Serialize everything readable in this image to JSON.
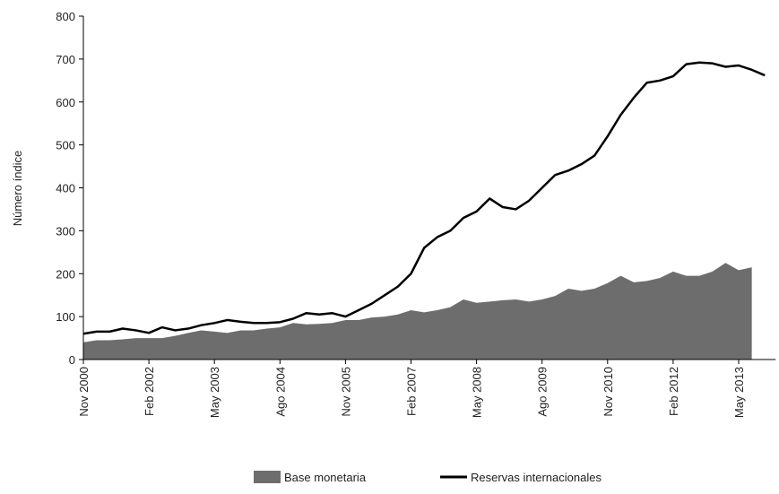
{
  "chart_data": {
    "type": "line-area",
    "y_label": "Número índice",
    "categories": [
      "Nov 2000",
      null,
      null,
      null,
      null,
      "Feb 2002",
      null,
      null,
      null,
      null,
      "May 2003",
      null,
      null,
      null,
      null,
      "Ago 2004",
      null,
      null,
      null,
      null,
      "Nov 2005",
      null,
      null,
      null,
      null,
      "Feb 2007",
      null,
      null,
      null,
      null,
      "May 2008",
      null,
      null,
      null,
      null,
      "Ago 2009",
      null,
      null,
      null,
      null,
      "Nov 2010",
      null,
      null,
      null,
      null,
      "Feb 2012",
      null,
      null,
      null,
      null,
      "May 2013",
      null,
      null
    ],
    "series": [
      {
        "name": "Base monetaria",
        "color": "#6d6d6d",
        "kind": "area",
        "values": [
          40,
          45,
          45,
          47,
          50,
          50,
          50,
          55,
          62,
          68,
          65,
          62,
          68,
          68,
          72,
          75,
          85,
          82,
          83,
          85,
          92,
          92,
          98,
          100,
          105,
          115,
          110,
          115,
          122,
          140,
          132,
          135,
          138,
          140,
          135,
          140,
          148,
          165,
          160,
          165,
          178,
          195,
          180,
          183,
          190,
          205,
          195,
          195,
          205,
          225,
          208,
          215,
          null
        ]
      },
      {
        "name": "Reservas internacionales",
        "color": "#000000",
        "kind": "line",
        "values": [
          60,
          65,
          65,
          72,
          68,
          62,
          75,
          68,
          72,
          80,
          85,
          92,
          88,
          85,
          85,
          87,
          95,
          108,
          105,
          108,
          100,
          115,
          130,
          150,
          170,
          200,
          260,
          285,
          300,
          330,
          345,
          375,
          355,
          350,
          370,
          400,
          430,
          440,
          455,
          475,
          520,
          570,
          610,
          645,
          650,
          660,
          688,
          692,
          690,
          682,
          685,
          675,
          662
        ]
      }
    ],
    "ylim": [
      0,
      800
    ],
    "yticks": [
      0,
      100,
      200,
      300,
      400,
      500,
      600,
      700,
      800
    ],
    "grid": false
  }
}
